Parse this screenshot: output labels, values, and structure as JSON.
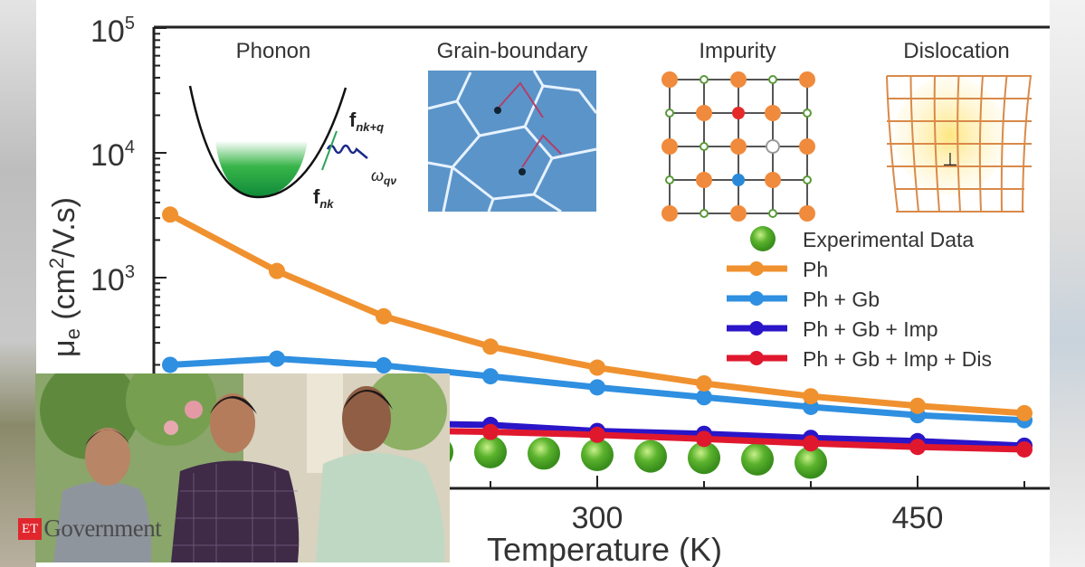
{
  "chart_data": {
    "type": "line",
    "xlabel": "Temperature (K)",
    "ylabel": "μe (cm2/V.s)",
    "ylabel_parts": {
      "mu": "μ",
      "sub": "e",
      "unit_a": " (cm",
      "sup": "2",
      "unit_b": "/V.s)"
    },
    "y_scale": "log",
    "ylim": [
      20,
      100000
    ],
    "xlim": [
      85,
      520
    ],
    "x_tick_labels": [
      "300",
      "450"
    ],
    "x_ticks_major": [
      300,
      450
    ],
    "y_tick_labels": [
      {
        "base": "10",
        "exp": "5",
        "value": 100000
      },
      {
        "base": "10",
        "exp": "4",
        "value": 10000
      },
      {
        "base": "10",
        "exp": "3",
        "value": 1000
      }
    ],
    "grid": false,
    "legend_position": "right",
    "series": [
      {
        "name": "Experimental Data",
        "color": "#4ea82a",
        "style": "markers",
        "x": [
          225,
          250,
          275,
          300,
          325,
          350,
          375,
          400
        ],
        "values": [
          40,
          40,
          39,
          38,
          37,
          36,
          35,
          33
        ]
      },
      {
        "name": "Ph",
        "color": "#f0912f",
        "style": "line-markers",
        "x": [
          100,
          150,
          200,
          250,
          300,
          350,
          400,
          450,
          500
        ],
        "values": [
          3200,
          1130,
          490,
          280,
          190,
          142,
          112,
          94,
          82
        ]
      },
      {
        "name": "Ph + Gb",
        "color": "#2f8fe0",
        "style": "line-markers",
        "x": [
          100,
          150,
          200,
          250,
          300,
          350,
          400,
          450,
          500
        ],
        "values": [
          200,
          224,
          198,
          162,
          132,
          110,
          92,
          79,
          72
        ]
      },
      {
        "name": "Ph + Gb + Imp",
        "color": "#2a16c8",
        "style": "line-markers",
        "x": [
          100,
          150,
          200,
          250,
          300,
          350,
          400,
          450,
          500
        ],
        "values": [
          72,
          70,
          68,
          66,
          59,
          56,
          52,
          49,
          45
        ]
      },
      {
        "name": "Ph + Gb + Imp + Dis",
        "color": "#e0182e",
        "style": "line-markers",
        "x": [
          100,
          150,
          200,
          250,
          300,
          350,
          400,
          450,
          500
        ],
        "values": [
          64,
          62,
          60,
          58,
          55,
          51,
          47,
          44,
          42
        ]
      }
    ],
    "insets": [
      {
        "title": "Phonon",
        "labels": [
          "f",
          "nk+q",
          "ω",
          "qν",
          "f",
          "nk"
        ]
      },
      {
        "title": "Grain-boundary"
      },
      {
        "title": "Impurity"
      },
      {
        "title": "Dislocation"
      }
    ]
  },
  "photo": {
    "description_visible": false
  },
  "logo": {
    "et": "ET",
    "name": "Government"
  },
  "colors": {
    "orange": "#f0912f",
    "blue": "#2f8fe0",
    "purple": "#2a16c8",
    "red": "#e0182e",
    "green": "#4ea82a",
    "logo_red": "#e1262d"
  }
}
